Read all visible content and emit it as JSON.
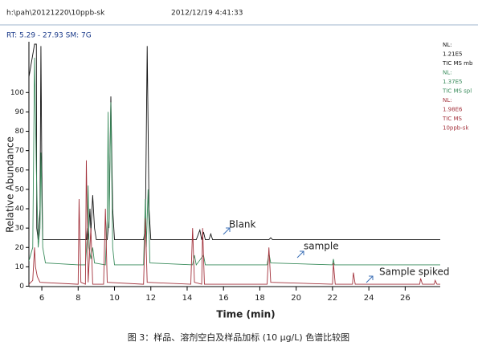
{
  "header": {
    "file": "h:\\pah\\20121220\\10ppb-sk",
    "datetime": "2012/12/19 4:41:33",
    "rt_label": "RT: 5.29 - 27.93  SM: 7G"
  },
  "chart_data": {
    "type": "line",
    "x_label": "Time (min)",
    "y_label": "Relative Abundance",
    "xlim": [
      5.29,
      27.93
    ],
    "ylim": [
      0,
      125
    ],
    "xticks": [
      6,
      8,
      10,
      12,
      14,
      16,
      18,
      20,
      22,
      24,
      26
    ],
    "yticks": [
      0,
      10,
      20,
      30,
      40,
      50,
      60,
      70,
      80,
      90,
      100
    ],
    "series": [
      {
        "name": "Blank",
        "color": "#111111",
        "notes": [
          "NL:",
          "1.21E5",
          "TIC  MS mb"
        ],
        "x": [
          5.29,
          5.6,
          5.7,
          5.72,
          5.8,
          5.9,
          5.95,
          6.0,
          6.05,
          8.0,
          8.45,
          8.5,
          8.55,
          8.65,
          8.7,
          8.8,
          8.9,
          9.0,
          9.6,
          9.7,
          9.8,
          9.9,
          10.0,
          11.6,
          11.7,
          11.8,
          11.9,
          12.0,
          14.5,
          14.7,
          14.8,
          14.9,
          15.0,
          15.2,
          15.3,
          15.4,
          18.5,
          18.6,
          18.7,
          27.93
        ],
        "values": [
          108,
          125,
          125,
          30,
          24,
          40,
          124,
          60,
          24,
          24,
          24,
          30,
          24,
          40,
          28,
          47,
          30,
          24,
          24,
          35,
          98,
          40,
          24,
          24,
          30,
          124,
          40,
          24,
          24,
          29,
          24,
          28,
          24,
          24,
          27,
          24,
          24,
          25,
          24,
          24
        ]
      },
      {
        "name": "sample",
        "color": "#3a8c5c",
        "notes": [
          "NL:",
          "1.37E5",
          "TIC  MS spl"
        ],
        "x": [
          5.29,
          5.5,
          5.6,
          5.7,
          5.8,
          5.9,
          5.95,
          6.05,
          6.2,
          8.0,
          8.4,
          8.5,
          8.55,
          8.6,
          8.7,
          8.8,
          8.9,
          9.5,
          9.6,
          9.65,
          9.7,
          9.8,
          9.9,
          10.0,
          11.6,
          11.7,
          11.75,
          11.85,
          11.95,
          14.3,
          14.4,
          14.5,
          14.9,
          15.0,
          18.4,
          18.5,
          18.6,
          22.0,
          22.05,
          22.1,
          27.93
        ],
        "values": [
          13,
          20,
          118,
          60,
          20,
          30,
          69,
          20,
          12,
          11,
          11,
          25,
          52,
          20,
          14,
          20,
          12,
          11,
          35,
          90,
          30,
          95,
          20,
          11,
          11,
          45,
          20,
          50,
          12,
          11,
          16,
          11,
          16,
          11,
          11,
          17,
          12,
          11,
          14,
          11,
          11
        ]
      },
      {
        "name": "Sample spiked",
        "color": "#a3323c",
        "notes": [
          "NL:",
          "1.98E6",
          "TIC  MS",
          "10ppb-sk"
        ],
        "x": [
          5.29,
          5.5,
          5.6,
          5.65,
          5.75,
          5.9,
          8.0,
          8.05,
          8.15,
          8.4,
          8.45,
          8.55,
          8.7,
          8.8,
          9.4,
          9.5,
          9.6,
          11.6,
          11.7,
          11.8,
          14.2,
          14.3,
          14.4,
          14.8,
          14.85,
          14.95,
          18.4,
          18.5,
          18.6,
          22.0,
          22.05,
          22.15,
          23.1,
          23.15,
          23.25,
          26.8,
          26.85,
          26.95,
          27.6,
          27.65,
          27.75,
          27.93
        ],
        "values": [
          1,
          3,
          20,
          10,
          5,
          2,
          1,
          45,
          2,
          1,
          65,
          2,
          30,
          1,
          1,
          40,
          2,
          1,
          35,
          2,
          1,
          30,
          2,
          1,
          30,
          1,
          1,
          20,
          2,
          1,
          12,
          1,
          1,
          7,
          1,
          1,
          4,
          1,
          1,
          3,
          1,
          1
        ]
      }
    ]
  },
  "caption": "图 3：样品、溶剂空白及样品加标 (10 µg/L) 色谱比较图"
}
